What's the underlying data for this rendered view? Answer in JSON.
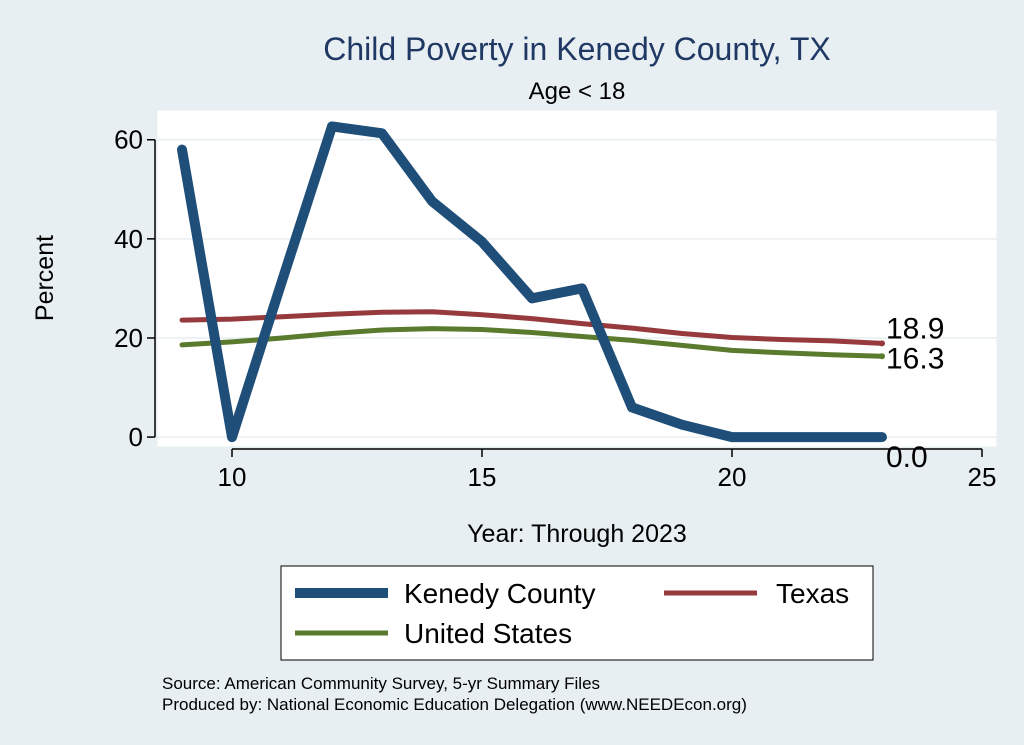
{
  "chart_data": {
    "type": "line",
    "title": "Child Poverty in Kenedy County, TX",
    "subtitle": "Age < 18",
    "xlabel": "Year: Through 2023",
    "ylabel": "Percent",
    "xlim": [
      8.5,
      25.3
    ],
    "ylim": [
      -2,
      66
    ],
    "xticks": [
      10,
      15,
      20,
      25
    ],
    "yticks": [
      0,
      20,
      40,
      60
    ],
    "grid": true,
    "legend_position": "bottom",
    "series": [
      {
        "name": "Kenedy County",
        "color": "#1f4e79",
        "x": [
          9,
          10,
          11,
          12,
          13,
          14,
          15,
          16,
          17,
          18,
          19,
          20,
          21,
          22,
          23
        ],
        "y": [
          58,
          0,
          31.5,
          62.7,
          61.3,
          47.6,
          39.4,
          28,
          30,
          6,
          2.5,
          0,
          0,
          0,
          0
        ],
        "end_label": "0.0"
      },
      {
        "name": "Texas",
        "color": "#963a3e",
        "x": [
          9,
          10,
          11,
          12,
          13,
          14,
          15,
          16,
          17,
          18,
          19,
          20,
          21,
          22,
          23
        ],
        "y": [
          23.6,
          23.8,
          24.3,
          24.8,
          25.2,
          25.3,
          24.7,
          23.9,
          22.9,
          22,
          20.9,
          20.1,
          19.7,
          19.4,
          18.9
        ],
        "end_label": "18.9"
      },
      {
        "name": "United States",
        "color": "#5a7a2e",
        "x": [
          9,
          10,
          11,
          12,
          13,
          14,
          15,
          16,
          17,
          18,
          19,
          20,
          21,
          22,
          23
        ],
        "y": [
          18.6,
          19.2,
          20,
          20.9,
          21.6,
          21.9,
          21.7,
          21.1,
          20.3,
          19.5,
          18.5,
          17.5,
          17,
          16.6,
          16.3
        ],
        "end_label": "16.3"
      }
    ]
  },
  "footer": {
    "source": "Source: American Community Survey, 5-yr Summary Files",
    "produced": "Produced by: National Economic Education Delegation (www.NEEDEcon.org)"
  }
}
